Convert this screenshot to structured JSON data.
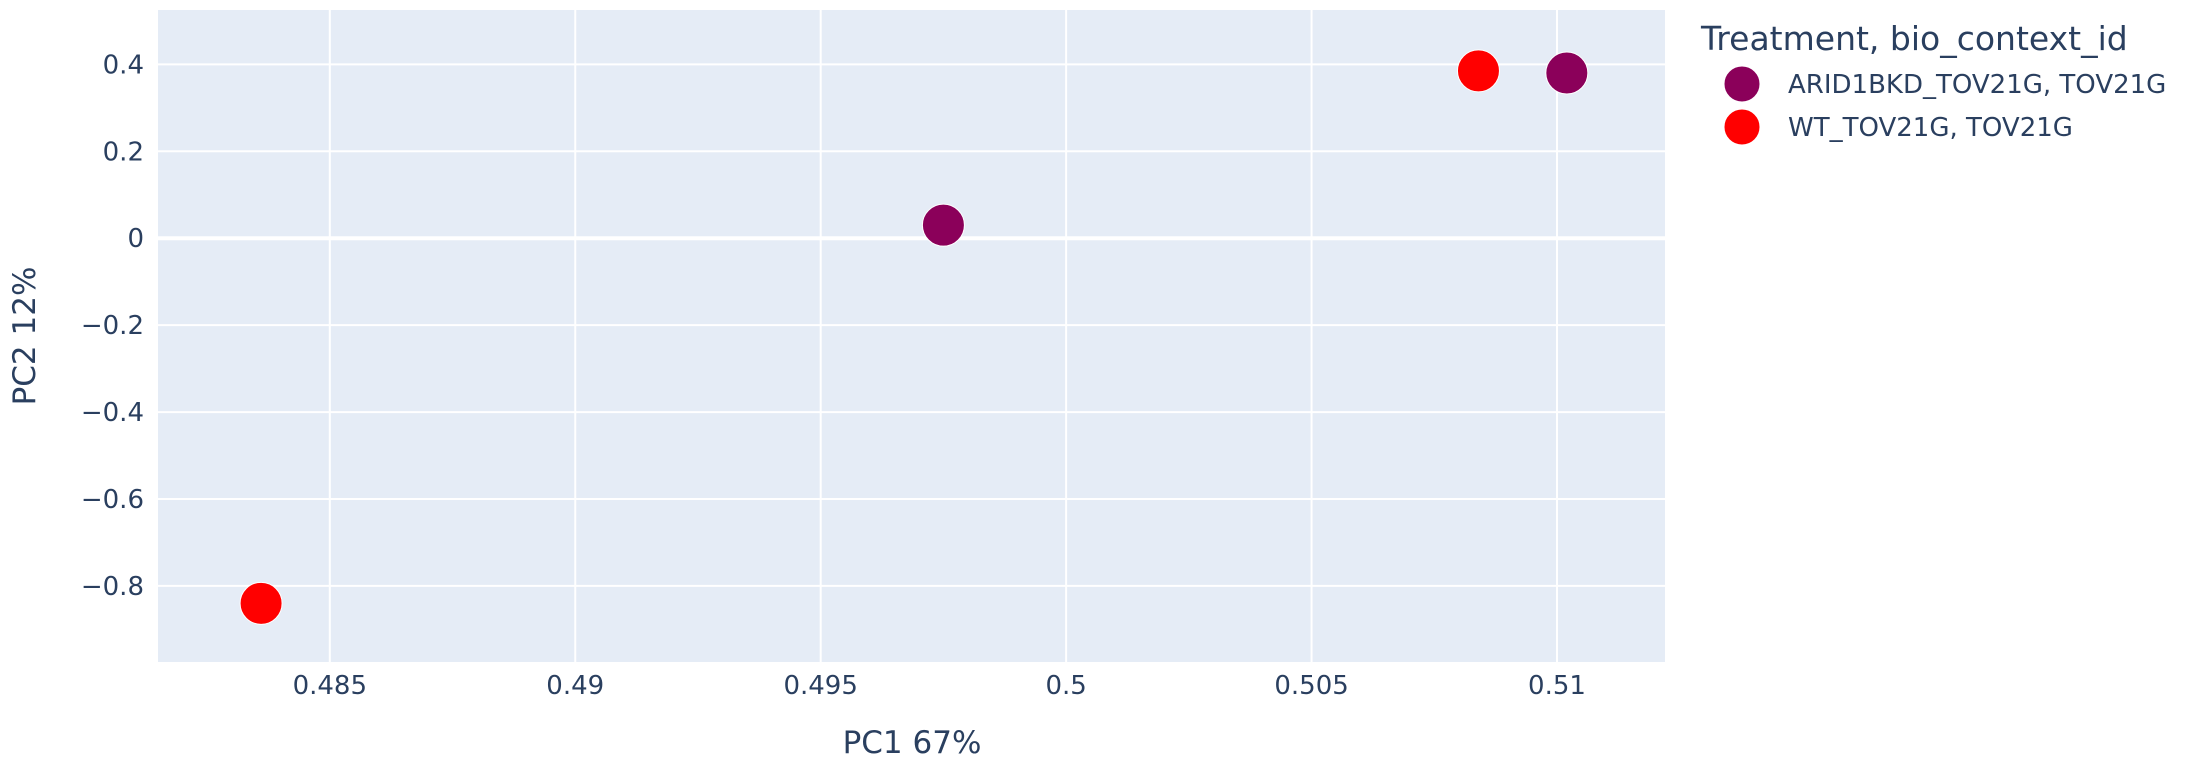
{
  "chart_data": {
    "type": "scatter",
    "xlabel": "PC1 67%",
    "ylabel": "PC2 12%",
    "xlim": [
      0.4815,
      0.5122
    ],
    "ylim": [
      -0.975,
      0.525
    ],
    "x_ticks": [
      0.485,
      0.49,
      0.495,
      0.5,
      0.505,
      0.51
    ],
    "x_tick_labels": [
      "0.485",
      "0.49",
      "0.495",
      "0.5",
      "0.505",
      "0.51"
    ],
    "y_ticks": [
      0.4,
      0.2,
      0,
      -0.2,
      -0.4,
      -0.6,
      -0.8
    ],
    "y_tick_labels": [
      "0.4",
      "0.2",
      "0",
      "−0.2",
      "−0.4",
      "−0.6",
      "−0.8"
    ],
    "grid": true,
    "legend": {
      "title": "Treatment, bio_context_id",
      "placement": "right"
    },
    "series": [
      {
        "name": "ARID1BKD_TOV21G, TOV21G",
        "color": "#8b005a",
        "points": [
          {
            "x": 0.4975,
            "y": 0.03
          },
          {
            "x": 0.5102,
            "y": 0.38
          }
        ]
      },
      {
        "name": "WT_TOV21G, TOV21G",
        "color": "#ff0000",
        "points": [
          {
            "x": 0.4836,
            "y": -0.84
          },
          {
            "x": 0.5084,
            "y": 0.385
          }
        ]
      }
    ],
    "plot_bg": "#e5ecf6"
  }
}
